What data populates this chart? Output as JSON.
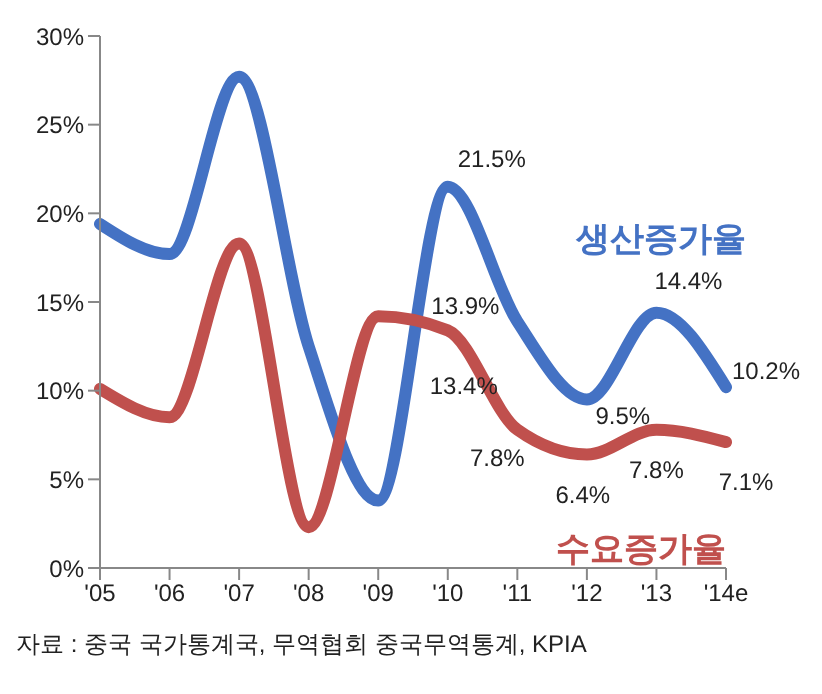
{
  "chart_data": {
    "type": "line",
    "categories": [
      "'05",
      "'06",
      "'07",
      "'08",
      "'09",
      "'10",
      "'11",
      "'12",
      "'13",
      "'14e"
    ],
    "series": [
      {
        "name": "생산증가율",
        "color": "#4472c4",
        "values": [
          19.4,
          17.7,
          27.7,
          12.5,
          3.8,
          21.5,
          13.9,
          9.5,
          14.4,
          10.2
        ],
        "value_labels": [
          null,
          null,
          null,
          null,
          null,
          "21.5%",
          "13.9%",
          "9.5%",
          "14.4%",
          "10.2%"
        ]
      },
      {
        "name": "수요증가율",
        "color": "#c0504d",
        "values": [
          10.1,
          8.5,
          18.3,
          2.3,
          14.2,
          13.4,
          7.8,
          6.4,
          7.8,
          7.1
        ],
        "value_labels": [
          null,
          null,
          null,
          null,
          null,
          "13.4%",
          "7.8%",
          "6.4%",
          "7.8%",
          "7.1%"
        ]
      }
    ],
    "ylim": [
      0,
      30
    ],
    "yticks": [
      {
        "value": 0,
        "label": "0%"
      },
      {
        "value": 5,
        "label": "5%"
      },
      {
        "value": 10,
        "label": "10%"
      },
      {
        "value": 15,
        "label": "15%"
      },
      {
        "value": 20,
        "label": "20%"
      },
      {
        "value": 25,
        "label": "25%"
      },
      {
        "value": 30,
        "label": "30%"
      }
    ],
    "grid": false,
    "marker": "none",
    "line_style": "solid",
    "annotations": [
      "자료 : 중국 국가통계국, 무역협회 중국무역통계, KPIA"
    ]
  }
}
